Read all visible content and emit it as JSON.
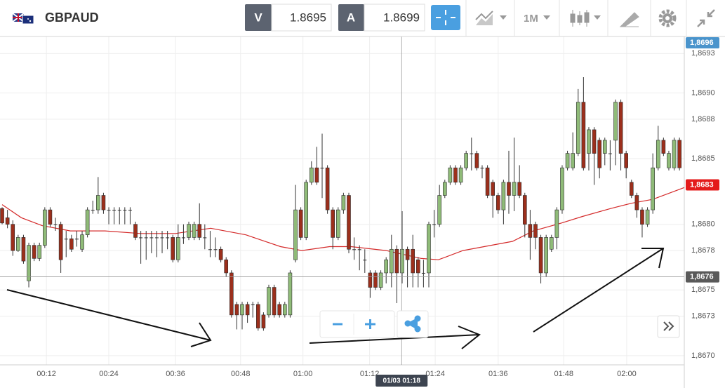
{
  "header": {
    "symbol": "GBPAUD",
    "bid_label": "V",
    "bid": "1.8695",
    "ask_label": "A",
    "ask": "1.8699",
    "timeframe": "1M"
  },
  "chart_data": {
    "type": "candlestick",
    "xlim": [
      -0.4,
      127.9
    ],
    "ylim": [
      1.86693,
      1.86943
    ],
    "yticks": [
      {
        "value": 1.8693,
        "label": "1,8693"
      },
      {
        "value": 1.869,
        "label": "1,8690"
      },
      {
        "value": 1.8688,
        "label": "1,8688"
      },
      {
        "value": 1.8685,
        "label": "1,8685"
      },
      {
        "value": 1.868,
        "label": "1,8680"
      },
      {
        "value": 1.8678,
        "label": "1,8678"
      },
      {
        "value": 1.8675,
        "label": "1,8675"
      },
      {
        "value": 1.8673,
        "label": "1,8673"
      },
      {
        "value": 1.867,
        "label": "1,8670"
      }
    ],
    "xticks": [
      {
        "value": 8.3,
        "label": "00:12"
      },
      {
        "value": 20.0,
        "label": "00:24"
      },
      {
        "value": 32.5,
        "label": "00:36"
      },
      {
        "value": 44.7,
        "label": "00:48"
      },
      {
        "value": 56.4,
        "label": "01:00"
      },
      {
        "value": 68.9,
        "label": "01:12"
      },
      {
        "value": 81.2,
        "label": "01:24"
      },
      {
        "value": 93.0,
        "label": "01:36"
      },
      {
        "value": 105.3,
        "label": "01:48"
      },
      {
        "value": 117.1,
        "label": "02:00"
      }
    ],
    "grid": true,
    "up_color": "#8fbb78",
    "down_color": "#9c2f1c",
    "candles": {
      "open": [
        1.86812,
        1.86805,
        1.868,
        1.8678,
        1.8679,
        1.86757,
        1.86784,
        1.86774,
        1.86784,
        1.86811,
        1.868,
        1.868,
        1.86789,
        1.86789,
        1.86789,
        1.86781,
        1.86792,
        1.86811,
        1.86811,
        1.86822,
        1.86811,
        1.86811,
        1.86811,
        1.86811,
        1.86811,
        1.868,
        1.8679,
        1.8679,
        1.8679,
        1.8679,
        1.8679,
        1.8679,
        1.8679,
        1.86773,
        1.8679,
        1.8679,
        1.8679,
        1.868,
        1.8679,
        1.86781,
        1.86781,
        1.86781,
        1.86773,
        1.86763,
        1.86739,
        1.86731,
        1.86739,
        1.86739,
        1.86739,
        1.86731,
        1.86731,
        1.86752,
        1.86739,
        1.86731,
        1.86731,
        1.86773,
        1.86811,
        1.8679,
        1.86832,
        1.86843,
        1.86843,
        1.86843,
        1.86811,
        1.8679,
        1.86811,
        1.86822,
        1.86781,
        1.86781,
        1.86773,
        1.86763,
        1.86763,
        1.86752,
        1.86763,
        1.86763,
        1.86781,
        1.86763,
        1.86781,
        1.86781,
        1.86773,
        1.86763,
        1.86763,
        1.868,
        1.868,
        1.86822,
        1.86832,
        1.86843,
        1.86832,
        1.86843,
        1.86854,
        1.86854,
        1.86843,
        1.86843,
        1.86832,
        1.86822,
        1.86811,
        1.86832,
        1.86822,
        1.86832,
        1.86822,
        1.868,
        1.868,
        1.8679,
        1.86763,
        1.86781,
        1.8679,
        1.86811,
        1.86843,
        1.86843,
        1.86854,
        1.86893,
        1.86854,
        1.86872,
        1.86864,
        1.86854,
        1.86854,
        1.86864,
        1.86893,
        1.86854,
        1.86832,
        1.86822,
        1.86811,
        1.868,
        1.86811,
        1.86843,
        1.86864,
        1.86843,
        1.86843,
        1.86864
      ],
      "close": [
        1.86801,
        1.868,
        1.8678,
        1.8679,
        1.86772,
        1.86784,
        1.86774,
        1.86784,
        1.86811,
        1.868,
        1.868,
        1.86773,
        1.86789,
        1.86781,
        1.86789,
        1.86792,
        1.86811,
        1.86811,
        1.86822,
        1.86811,
        1.86811,
        1.86811,
        1.86811,
        1.86811,
        1.86811,
        1.8679,
        1.8679,
        1.8679,
        1.8679,
        1.8679,
        1.8679,
        1.8679,
        1.86773,
        1.8679,
        1.8679,
        1.868,
        1.868,
        1.8679,
        1.8679,
        1.86781,
        1.86781,
        1.86773,
        1.86763,
        1.86731,
        1.86731,
        1.86739,
        1.86731,
        1.86739,
        1.86721,
        1.86721,
        1.86752,
        1.86731,
        1.86731,
        1.86739,
        1.86763,
        1.86811,
        1.8679,
        1.86832,
        1.86843,
        1.86832,
        1.86843,
        1.86811,
        1.8679,
        1.86811,
        1.86822,
        1.86781,
        1.86781,
        1.86781,
        1.86773,
        1.86752,
        1.86752,
        1.86763,
        1.86773,
        1.86781,
        1.86763,
        1.86781,
        1.86773,
        1.86763,
        1.86763,
        1.86763,
        1.868,
        1.868,
        1.86822,
        1.86832,
        1.86843,
        1.86832,
        1.86843,
        1.86854,
        1.86854,
        1.86843,
        1.86843,
        1.86822,
        1.86822,
        1.86811,
        1.86832,
        1.86822,
        1.86832,
        1.86822,
        1.868,
        1.8679,
        1.8679,
        1.86763,
        1.8679,
        1.8679,
        1.86811,
        1.86843,
        1.86854,
        1.86854,
        1.86893,
        1.86843,
        1.86872,
        1.86854,
        1.86843,
        1.86864,
        1.86854,
        1.86893,
        1.86854,
        1.86843,
        1.86822,
        1.86811,
        1.868,
        1.86811,
        1.86843,
        1.86864,
        1.86854,
        1.86854,
        1.86864,
        1.86843
      ],
      "high": [
        1.86813,
        1.86811,
        1.86803,
        1.86792,
        1.86792,
        1.86786,
        1.86786,
        1.86786,
        1.86813,
        1.86813,
        1.86805,
        1.86802,
        1.86795,
        1.86792,
        1.86795,
        1.86795,
        1.86813,
        1.86818,
        1.86836,
        1.86824,
        1.86813,
        1.86813,
        1.86813,
        1.86813,
        1.86813,
        1.86802,
        1.86795,
        1.86795,
        1.86795,
        1.86795,
        1.86795,
        1.86795,
        1.86792,
        1.868,
        1.868,
        1.86802,
        1.86802,
        1.86816,
        1.868,
        1.86795,
        1.8679,
        1.86783,
        1.86775,
        1.86765,
        1.86741,
        1.86741,
        1.86741,
        1.86741,
        1.86741,
        1.86733,
        1.86754,
        1.86754,
        1.86741,
        1.86741,
        1.86765,
        1.8683,
        1.86813,
        1.86834,
        1.86848,
        1.86859,
        1.86869,
        1.86845,
        1.86813,
        1.86813,
        1.86824,
        1.86824,
        1.8679,
        1.86784,
        1.86781,
        1.86765,
        1.86765,
        1.86765,
        1.86775,
        1.86792,
        1.86784,
        1.8681,
        1.86783,
        1.86792,
        1.86775,
        1.86773,
        1.86802,
        1.86811,
        1.8683,
        1.86834,
        1.86845,
        1.86845,
        1.86845,
        1.86856,
        1.86866,
        1.86856,
        1.86845,
        1.86845,
        1.86834,
        1.86824,
        1.86834,
        1.86856,
        1.86866,
        1.86845,
        1.86824,
        1.86811,
        1.86802,
        1.86792,
        1.86792,
        1.86792,
        1.86813,
        1.86845,
        1.86856,
        1.8687,
        1.86903,
        1.86912,
        1.86874,
        1.86874,
        1.86866,
        1.86866,
        1.86864,
        1.86895,
        1.86895,
        1.86856,
        1.86834,
        1.86824,
        1.86813,
        1.86813,
        1.86854,
        1.86875,
        1.86866,
        1.86856,
        1.86866,
        1.86866
      ],
      "low": [
        1.868,
        1.86797,
        1.86776,
        1.86779,
        1.8677,
        1.86752,
        1.86772,
        1.86772,
        1.86782,
        1.86798,
        1.86795,
        1.86763,
        1.86775,
        1.86779,
        1.86783,
        1.86779,
        1.8679,
        1.86808,
        1.86808,
        1.86808,
        1.868,
        1.868,
        1.868,
        1.868,
        1.868,
        1.86788,
        1.8677,
        1.86773,
        1.86778,
        1.86775,
        1.86778,
        1.86781,
        1.86771,
        1.86771,
        1.86785,
        1.86788,
        1.86788,
        1.86788,
        1.86781,
        1.86775,
        1.86775,
        1.86771,
        1.8676,
        1.86729,
        1.8672,
        1.8672,
        1.86725,
        1.86729,
        1.86719,
        1.86719,
        1.86729,
        1.86729,
        1.86729,
        1.86729,
        1.86729,
        1.86771,
        1.86788,
        1.86788,
        1.8683,
        1.8683,
        1.8682,
        1.86808,
        1.86781,
        1.86788,
        1.86808,
        1.86778,
        1.86773,
        1.86765,
        1.86763,
        1.86744,
        1.8675,
        1.8675,
        1.86755,
        1.86752,
        1.8674,
        1.86755,
        1.86752,
        1.86752,
        1.86752,
        1.86752,
        1.86752,
        1.8679,
        1.86798,
        1.8682,
        1.8683,
        1.8683,
        1.8683,
        1.86841,
        1.86841,
        1.86841,
        1.86835,
        1.8682,
        1.86805,
        1.86808,
        1.868,
        1.86808,
        1.8681,
        1.8682,
        1.8679,
        1.86773,
        1.86781,
        1.86755,
        1.8676,
        1.86779,
        1.86781,
        1.86808,
        1.86841,
        1.86841,
        1.86852,
        1.86841,
        1.86841,
        1.8683,
        1.86835,
        1.86845,
        1.86841,
        1.86845,
        1.86841,
        1.86835,
        1.8682,
        1.86805,
        1.8679,
        1.86798,
        1.86808,
        1.86841,
        1.86852,
        1.86841,
        1.86841,
        1.86841
      ]
    },
    "ma": {
      "color": "#d42a2a",
      "x": [
        0,
        3.6,
        7.5,
        12.8,
        19.3,
        25.9,
        32.5,
        39.1,
        45.7,
        52.2,
        56.2,
        61.4,
        65.4,
        72,
        78.6,
        81.8,
        86.4,
        91.7,
        95.7,
        99.6,
        104.9,
        108.8,
        114.1,
        118,
        122,
        127.9
      ],
      "values": [
        1.86815,
        1.86805,
        1.86799,
        1.86795,
        1.86795,
        1.86793,
        1.86793,
        1.86797,
        1.86792,
        1.86783,
        1.8678,
        1.86783,
        1.86783,
        1.8678,
        1.86774,
        1.86773,
        1.8678,
        1.86784,
        1.86787,
        1.86795,
        1.86801,
        1.86806,
        1.86812,
        1.86816,
        1.86819,
        1.86828
      ]
    },
    "price_tags": [
      {
        "value": 1.8696,
        "label": "1,8696",
        "color": "#4a94cc"
      },
      {
        "value": 1.8683,
        "label": "1,8683",
        "color": "#e41b1b"
      }
    ],
    "crosshair": {
      "x": 74.9,
      "y": 1.8676,
      "x_label": "01/03 01:18",
      "y_label": "1,8676"
    }
  }
}
